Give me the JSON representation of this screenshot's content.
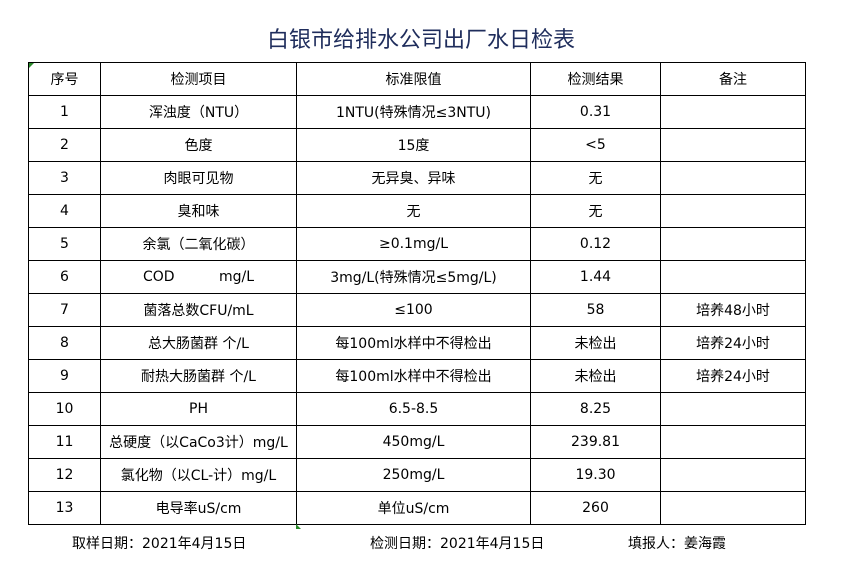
{
  "title": "白银市给排水公司出厂水日检表",
  "headers": [
    "序号",
    "检测项目",
    "标准限值",
    "检测结果",
    "备注"
  ],
  "rows": [
    [
      "1",
      "浑浊度（NTU）",
      "1NTU(特殊情况≤3NTU)",
      "0.31",
      ""
    ],
    [
      "2",
      "色度",
      "15度",
      "<5",
      ""
    ],
    [
      "3",
      "肉眼可见物",
      "无异臭、异味",
      "无",
      ""
    ],
    [
      "4",
      "臭和味",
      "无",
      "无",
      ""
    ],
    [
      "5",
      "余氯（二氧化碳）",
      "≥0.1mg/L",
      "0.12",
      ""
    ],
    [
      "6",
      "COD          mg/L",
      "3mg/L(特殊情况≤5mg/L)",
      "1.44",
      ""
    ],
    [
      "7",
      "菌落总数CFU/mL",
      "≤100",
      "58",
      "培养48小时"
    ],
    [
      "8",
      "总大肠菌群 个/L",
      "每100ml水样中不得检出",
      "未检出",
      "培养24小时"
    ],
    [
      "9",
      "耐热大肠菌群 个/L",
      "每100ml水样中不得检出",
      "未检出",
      "培养24小时"
    ],
    [
      "10",
      "PH",
      "6.5-8.5",
      "8.25",
      ""
    ],
    [
      "11",
      "总硬度（以CaCo3计）mg/L",
      "450mg/L",
      "239.81",
      ""
    ],
    [
      "12",
      "氯化物（以CL-计）mg/L",
      "250mg/L",
      "19.30",
      ""
    ],
    [
      "13",
      "电导率uS/cm",
      "单位uS/cm",
      "260",
      ""
    ]
  ],
  "footer": {
    "sample_date": "取样日期：2021年4月15日",
    "test_date": "检测日期：2021年4月15日",
    "reporter": "填报人：姜海霞"
  }
}
